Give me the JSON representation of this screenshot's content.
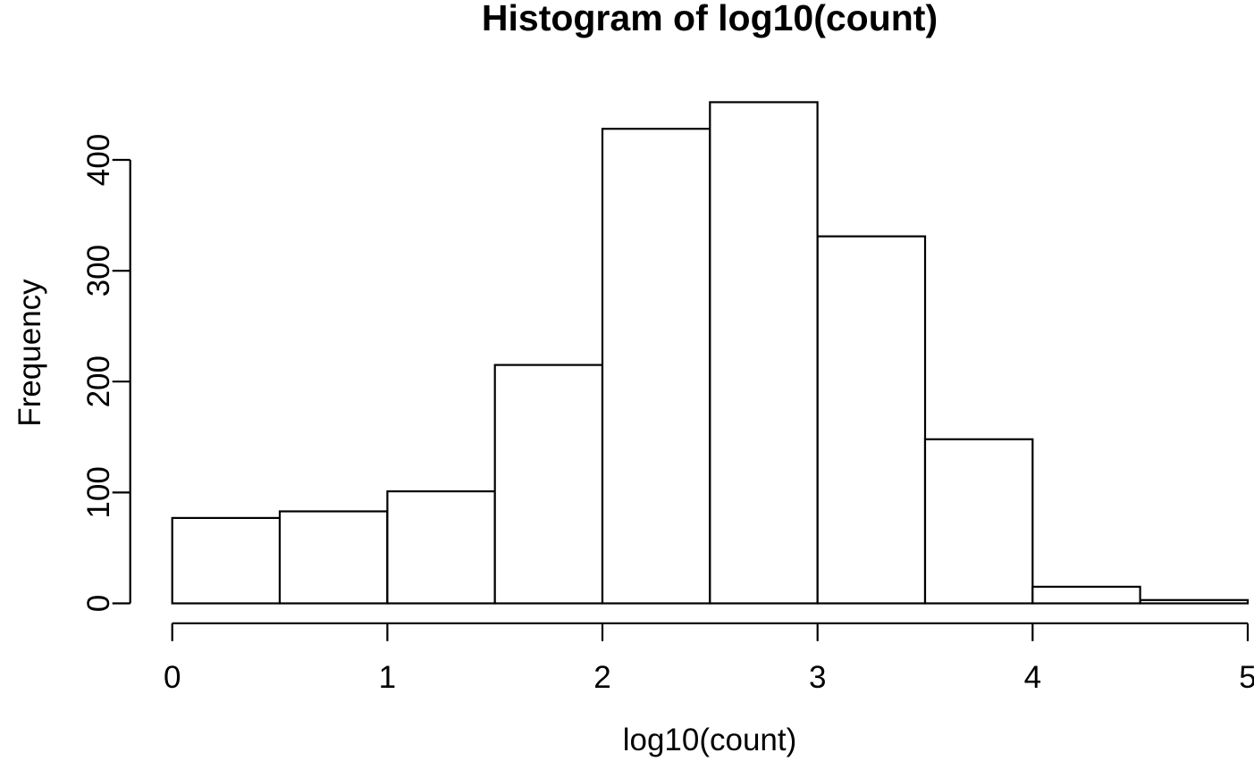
{
  "chart": {
    "title": "Histogram of log10(count)",
    "xlabel": "log10(count)",
    "ylabel": "Frequency"
  },
  "chart_data": {
    "type": "bar",
    "subtype": "histogram",
    "title": "Histogram of log10(count)",
    "xlabel": "log10(count)",
    "ylabel": "Frequency",
    "bin_edges": [
      0,
      0.5,
      1,
      1.5,
      2,
      2.5,
      3,
      3.5,
      4,
      4.5,
      5
    ],
    "counts": [
      77,
      83,
      101,
      215,
      428,
      452,
      331,
      148,
      15,
      3
    ],
    "x_ticks": [
      0,
      1,
      2,
      3,
      4,
      5
    ],
    "y_ticks": [
      0,
      100,
      200,
      300,
      400
    ],
    "xlim": [
      0,
      5
    ],
    "ylim": [
      0,
      452
    ],
    "grid": false,
    "legend": null,
    "bar_fill": "#ffffff",
    "bar_stroke": "#000000",
    "axis_color": "#000000",
    "background": "#ffffff"
  }
}
